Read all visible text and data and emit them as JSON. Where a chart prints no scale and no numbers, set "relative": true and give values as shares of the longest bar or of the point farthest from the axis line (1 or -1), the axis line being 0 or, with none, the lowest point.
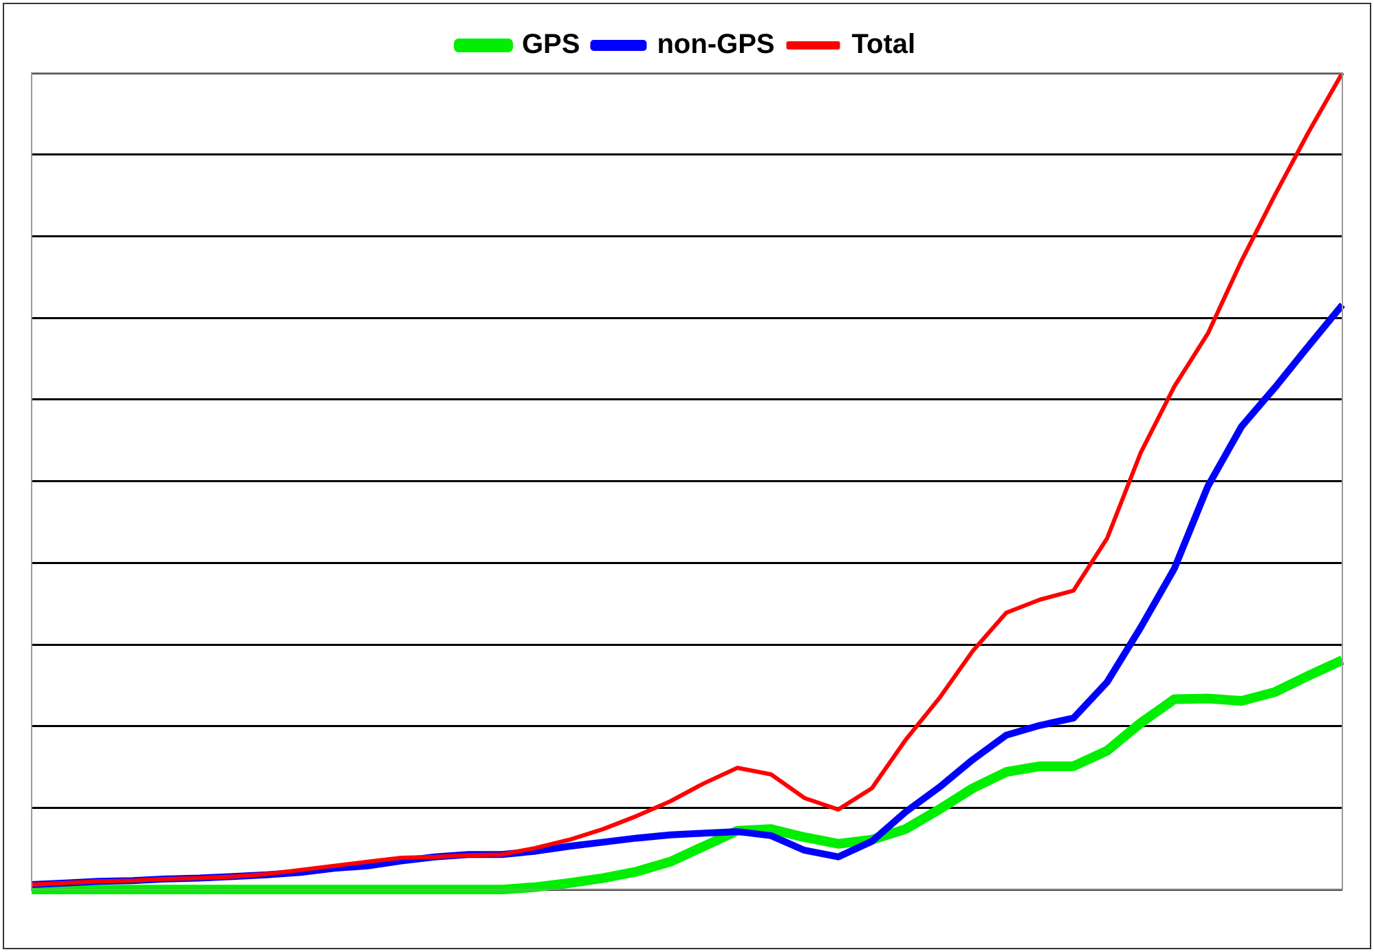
{
  "chart_data": {
    "type": "line",
    "relative": true,
    "grid": "y",
    "legend": "top",
    "marker": "none",
    "categories": [
      null,
      null,
      null,
      null,
      null,
      null,
      null,
      null,
      null,
      null,
      null,
      null,
      null,
      null,
      null,
      null,
      null,
      null,
      null,
      null,
      null,
      null,
      null,
      null,
      null,
      null,
      null,
      null,
      null,
      null,
      null,
      null,
      null,
      null,
      null,
      null,
      null,
      null,
      null,
      null
    ],
    "series": [
      {
        "name": "GPS",
        "color": "#00ee00",
        "values": [
          0,
          0,
          0,
          0,
          0,
          0,
          0,
          0,
          0,
          0,
          0,
          0,
          0,
          0,
          0,
          0.003,
          0.008,
          0.014,
          0.022,
          0.034,
          0.053,
          0.072,
          0.074,
          0.064,
          0.056,
          0.061,
          0.074,
          0.098,
          0.124,
          0.144,
          0.151,
          0.151,
          0.17,
          0.204,
          0.233,
          0.234,
          0.231,
          0.242,
          0.262,
          0.281
        ]
      },
      {
        "name": "non-GPS",
        "color": "#0000ff",
        "values": [
          0.006,
          0.008,
          0.01,
          0.011,
          0.013,
          0.014,
          0.016,
          0.018,
          0.021,
          0.026,
          0.029,
          0.035,
          0.04,
          0.043,
          0.043,
          0.047,
          0.053,
          0.058,
          0.063,
          0.067,
          0.069,
          0.071,
          0.066,
          0.048,
          0.04,
          0.059,
          0.095,
          0.125,
          0.159,
          0.189,
          0.201,
          0.21,
          0.254,
          0.321,
          0.393,
          0.494,
          0.567,
          0.615,
          0.666,
          0.716
        ]
      },
      {
        "name": "Total",
        "color": "#ff0000",
        "values": [
          0.006,
          0.008,
          0.01,
          0.011,
          0.013,
          0.014,
          0.016,
          0.019,
          0.024,
          0.029,
          0.034,
          0.039,
          0.04,
          0.042,
          0.043,
          0.051,
          0.061,
          0.074,
          0.09,
          0.108,
          0.13,
          0.149,
          0.141,
          0.112,
          0.098,
          0.124,
          0.183,
          0.234,
          0.292,
          0.339,
          0.355,
          0.366,
          0.43,
          0.535,
          0.616,
          0.681,
          0.77,
          0.851,
          0.928,
          1
        ]
      }
    ]
  }
}
